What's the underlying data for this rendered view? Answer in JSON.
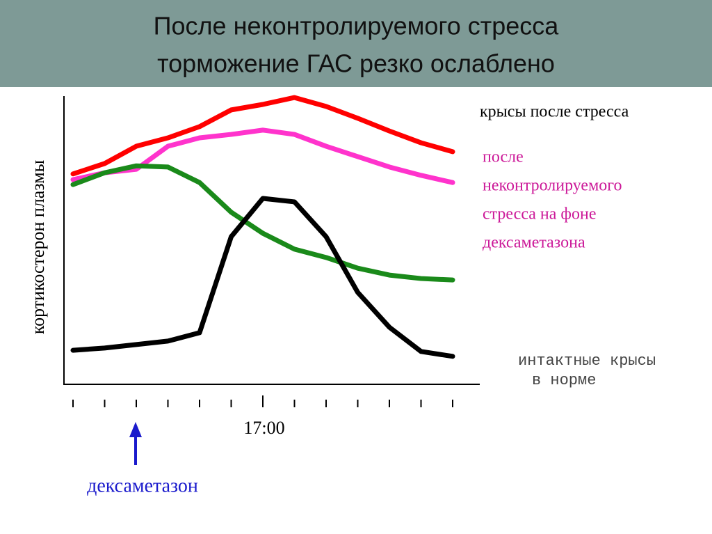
{
  "chart_data": {
    "type": "line",
    "title": [
      "После неконтролируемого стресса",
      "торможение ГАС резко ослаблено"
    ],
    "y_label": "кортикостерон плазмы",
    "categories": [
      null,
      null,
      null,
      null,
      null,
      null,
      "17:00",
      null,
      null,
      null,
      null,
      null,
      null
    ],
    "ylim": [
      0,
      100
    ],
    "series": [
      {
        "name": [
          "крысы после стресса"
        ],
        "color": "#ff0000",
        "values": [
          73,
          76.6,
          82.6,
          85.5,
          89.4,
          95.2,
          97.1,
          99.5,
          96.4,
          92.3,
          87.9,
          83.8,
          80.7
        ]
      },
      {
        "name": [
          "после",
          "неконтролируемого",
          "стресса на фоне",
          "дексаметазона"
        ],
        "color": "#ff33cc",
        "values": [
          71,
          73.4,
          74.6,
          82.6,
          85.5,
          86.7,
          88.2,
          86.7,
          82.6,
          79,
          75.4,
          72.5,
          70
        ]
      },
      {
        "color": "#1a8a1a",
        "values": [
          69.3,
          73.4,
          75.8,
          75.4,
          70,
          59.7,
          52.4,
          46.9,
          44,
          40.3,
          37.9,
          36.7,
          36.2
        ]
      },
      {
        "name": [
          "интактные крысы",
          "в норме"
        ],
        "color": "#000000",
        "values": [
          11.8,
          12.6,
          13.8,
          15,
          17.9,
          51.2,
          64.5,
          63.3,
          51.2,
          31.9,
          19.8,
          11.4,
          9.7
        ]
      }
    ],
    "annotation": "дексаметазон"
  }
}
